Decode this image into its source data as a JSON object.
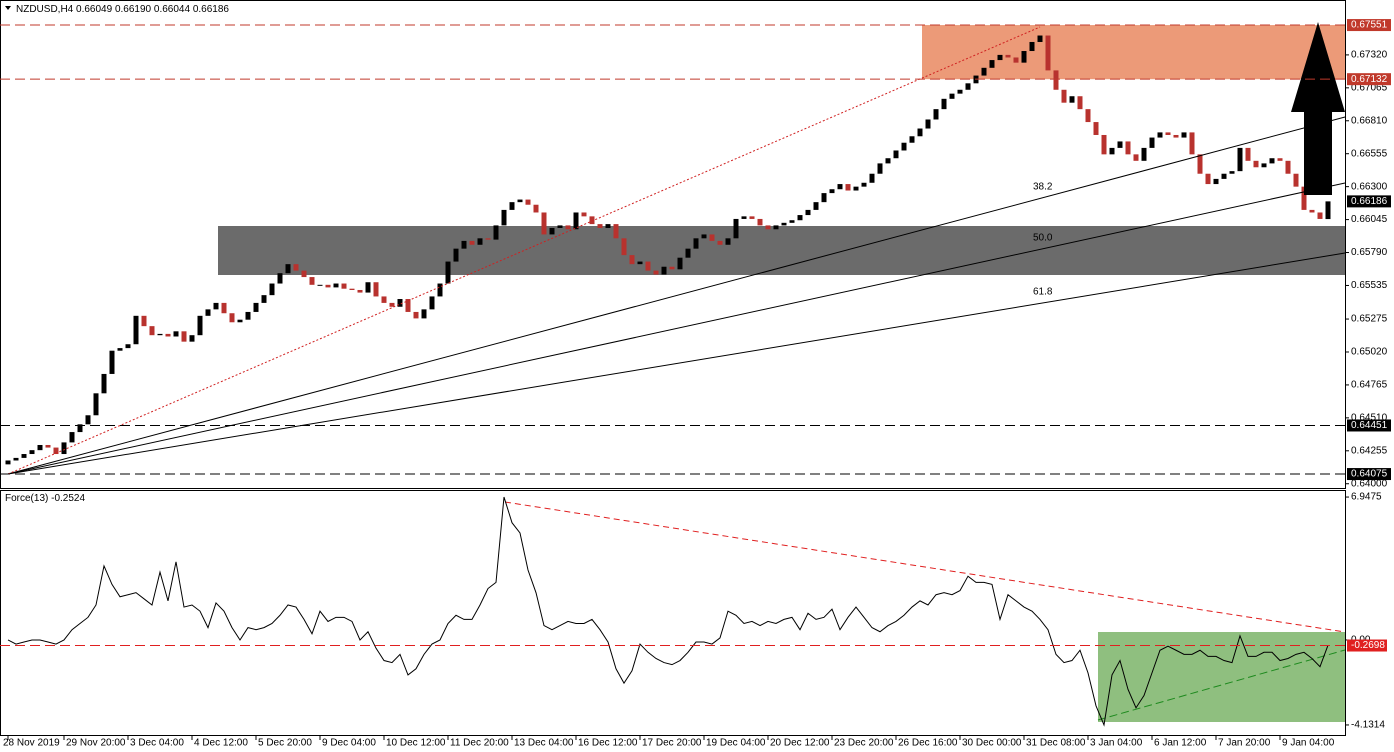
{
  "chart_data": [
    {
      "type": "candlestick",
      "title": "NZDUSD,H4",
      "last_high": {
        "value": 0.6619,
        "label": "0.66190"
      },
      "last_low": 0.66044,
      "up_color": "#000000",
      "down_color": "#b8322e",
      "open": [
        0.6415,
        0.6418,
        0.642,
        0.6423,
        0.6426,
        0.643,
        0.6428,
        0.6423,
        0.6432,
        0.644,
        0.6446,
        0.6453,
        0.647,
        0.6485,
        0.6503,
        0.6505,
        0.6508,
        0.653,
        0.6522,
        0.6515,
        0.6516,
        0.6514,
        0.6518,
        0.651,
        0.6515,
        0.653,
        0.6535,
        0.654,
        0.6532,
        0.6525,
        0.6527,
        0.6533,
        0.654,
        0.6546,
        0.6555,
        0.6563,
        0.657,
        0.6565,
        0.656,
        0.6554,
        0.6554,
        0.6552,
        0.6555,
        0.6551,
        0.655,
        0.6548,
        0.6556,
        0.6545,
        0.654,
        0.6537,
        0.6543,
        0.6533,
        0.6528,
        0.6535,
        0.6545,
        0.6555,
        0.6572,
        0.6582,
        0.6588,
        0.6585,
        0.659,
        0.6589,
        0.66,
        0.6612,
        0.6618,
        0.662,
        0.6616,
        0.661,
        0.6593,
        0.6598,
        0.66,
        0.6597,
        0.661,
        0.6607,
        0.6601,
        0.6598,
        0.6601,
        0.659,
        0.6577,
        0.657,
        0.6572,
        0.6565,
        0.6562,
        0.6568,
        0.6566,
        0.6575,
        0.6582,
        0.659,
        0.6593,
        0.6588,
        0.6585,
        0.659,
        0.6605,
        0.6607,
        0.6605,
        0.66,
        0.6597,
        0.66,
        0.6602,
        0.6604,
        0.6608,
        0.6612,
        0.6618,
        0.6625,
        0.6628,
        0.6632,
        0.6627,
        0.663,
        0.6633,
        0.664,
        0.6648,
        0.6652,
        0.6658,
        0.6664,
        0.6669,
        0.6675,
        0.6682,
        0.669,
        0.6698,
        0.6702,
        0.6705,
        0.671,
        0.6716,
        0.6722,
        0.6728,
        0.6732,
        0.673,
        0.6726,
        0.6735,
        0.6742,
        0.6747,
        0.672,
        0.6705,
        0.6695,
        0.67,
        0.669,
        0.668,
        0.667,
        0.6655,
        0.666,
        0.6665,
        0.6655,
        0.665,
        0.666,
        0.6668,
        0.6672,
        0.667,
        0.6668,
        0.6672,
        0.6655,
        0.664,
        0.6632,
        0.6636,
        0.664,
        0.6642,
        0.666,
        0.665,
        0.6645,
        0.6648,
        0.6652,
        0.665,
        0.664,
        0.663,
        0.6612,
        0.661,
        0.66049
      ],
      "close": [
        0.6418,
        0.642,
        0.6423,
        0.6426,
        0.643,
        0.6428,
        0.6423,
        0.6432,
        0.644,
        0.6446,
        0.6453,
        0.647,
        0.6485,
        0.6503,
        0.6505,
        0.6508,
        0.653,
        0.6522,
        0.6515,
        0.6516,
        0.6514,
        0.6518,
        0.651,
        0.6515,
        0.653,
        0.6535,
        0.654,
        0.6532,
        0.6525,
        0.6527,
        0.6533,
        0.654,
        0.6546,
        0.6555,
        0.6563,
        0.657,
        0.6565,
        0.656,
        0.6554,
        0.6554,
        0.6552,
        0.6555,
        0.6551,
        0.655,
        0.6548,
        0.6556,
        0.6545,
        0.654,
        0.6537,
        0.6543,
        0.6533,
        0.6528,
        0.6535,
        0.6545,
        0.6555,
        0.6572,
        0.6582,
        0.6588,
        0.6585,
        0.659,
        0.6589,
        0.66,
        0.6612,
        0.6618,
        0.662,
        0.6616,
        0.661,
        0.6593,
        0.6598,
        0.66,
        0.6597,
        0.661,
        0.6607,
        0.6601,
        0.6598,
        0.6601,
        0.659,
        0.6577,
        0.657,
        0.6572,
        0.6565,
        0.6562,
        0.6568,
        0.6566,
        0.6575,
        0.6582,
        0.659,
        0.6593,
        0.6588,
        0.6585,
        0.659,
        0.6605,
        0.6607,
        0.6605,
        0.66,
        0.6597,
        0.66,
        0.6602,
        0.6604,
        0.6608,
        0.6612,
        0.6618,
        0.6625,
        0.6628,
        0.6632,
        0.6627,
        0.663,
        0.6633,
        0.664,
        0.6648,
        0.6652,
        0.6658,
        0.6664,
        0.6669,
        0.6675,
        0.6682,
        0.669,
        0.6698,
        0.6702,
        0.6705,
        0.671,
        0.6716,
        0.6722,
        0.6728,
        0.6732,
        0.673,
        0.6726,
        0.6735,
        0.6742,
        0.6747,
        0.672,
        0.6705,
        0.6695,
        0.67,
        0.669,
        0.668,
        0.667,
        0.6655,
        0.666,
        0.6665,
        0.6655,
        0.665,
        0.666,
        0.6668,
        0.6672,
        0.667,
        0.6668,
        0.6672,
        0.6655,
        0.664,
        0.6632,
        0.6636,
        0.664,
        0.6642,
        0.666,
        0.665,
        0.6645,
        0.6648,
        0.6652,
        0.665,
        0.664,
        0.663,
        0.6612,
        0.661,
        0.6605,
        0.66186
      ],
      "ylim": [
        0.63967,
        0.67745
      ],
      "yticks": [
        {
          "value": 0.6732,
          "label": "0.67320"
        },
        {
          "value": 0.67065,
          "label": "0.67065"
        },
        {
          "value": 0.6681,
          "label": "0.66810"
        },
        {
          "value": 0.66555,
          "label": "0.66555"
        },
        {
          "value": 0.663,
          "label": "0.66300"
        },
        {
          "value": 0.66045,
          "label": "0.66045"
        },
        {
          "value": 0.6579,
          "label": "0.65790"
        },
        {
          "value": 0.65535,
          "label": "0.65535"
        },
        {
          "value": 0.65275,
          "label": "0.65275"
        },
        {
          "value": 0.6502,
          "label": "0.65020"
        },
        {
          "value": 0.64765,
          "label": "0.64765"
        },
        {
          "value": 0.6451,
          "label": "0.64510"
        },
        {
          "value": 0.64255,
          "label": "0.64255"
        },
        {
          "value": 0.64,
          "label": "0.64000"
        }
      ],
      "levels": [
        {
          "value": 0.67551,
          "color": "#c0392b"
        },
        {
          "value": 0.67132,
          "color": "#c0392b"
        },
        {
          "value": 0.64451,
          "color": "#000000"
        },
        {
          "value": 0.64075,
          "color": "#000000"
        }
      ],
      "fan_labels": [
        "38.2",
        "50.0",
        "61.8"
      ],
      "xticks": [
        {
          "value": 0,
          "label": "28 Nov 2019"
        },
        {
          "value": 7,
          "label": "29 Nov 20:00"
        },
        {
          "value": 15,
          "label": "3 Dec 04:00"
        },
        {
          "value": 23,
          "label": "4 Dec 12:00"
        },
        {
          "value": 31,
          "label": "5 Dec 20:00"
        },
        {
          "value": 39,
          "label": "9 Dec 04:00"
        },
        {
          "value": 47,
          "label": "10 Dec 12:00"
        },
        {
          "value": 55,
          "label": "11 Dec 20:00"
        },
        {
          "value": 63,
          "label": "13 Dec 04:00"
        },
        {
          "value": 71,
          "label": "16 Dec 12:00"
        },
        {
          "value": 79,
          "label": "17 Dec 20:00"
        },
        {
          "value": 87,
          "label": "19 Dec 04:00"
        },
        {
          "value": 95,
          "label": "20 Dec 12:00"
        },
        {
          "value": 103,
          "label": "23 Dec 20:00"
        },
        {
          "value": 111,
          "label": "26 Dec 16:00"
        },
        {
          "value": 119,
          "label": "30 Dec 00:00"
        },
        {
          "value": 127,
          "label": "31 Dec 08:00"
        },
        {
          "value": 135,
          "label": "3 Jan 04:00"
        },
        {
          "value": 143,
          "label": "6 Jan 12:00"
        },
        {
          "value": 151,
          "label": "7 Jan 20:00"
        },
        {
          "value": 159,
          "label": "9 Jan 04:00"
        }
      ],
      "grid": false
    },
    {
      "type": "line",
      "title": "Force(13)",
      "color": "#000000",
      "values": [
        0.0,
        -0.2,
        -0.1,
        0.0,
        0.0,
        -0.1,
        -0.2,
        0.0,
        0.5,
        0.8,
        1.1,
        1.7,
        3.6,
        2.7,
        2.1,
        2.2,
        2.3,
        2.0,
        1.7,
        3.3,
        1.9,
        3.8,
        1.6,
        1.7,
        1.4,
        0.6,
        1.8,
        1.4,
        0.6,
        0.0,
        0.6,
        0.5,
        0.6,
        0.8,
        1.2,
        1.7,
        1.6,
        1.0,
        0.3,
        1.4,
        0.9,
        1.1,
        1.1,
        0.9,
        0.0,
        0.4,
        -0.4,
        -1.0,
        -1.1,
        -0.7,
        -1.7,
        -1.4,
        -0.7,
        -0.2,
        0.0,
        0.8,
        1.2,
        1.0,
        1.0,
        1.7,
        2.5,
        2.8,
        6.9475,
        5.7,
        5.2,
        3.4,
        2.3,
        0.7,
        0.5,
        0.7,
        0.9,
        0.8,
        0.8,
        1.0,
        0.5,
        -0.1,
        -1.4,
        -2.1,
        -1.5,
        -0.2,
        -0.6,
        -0.9,
        -1.1,
        -1.2,
        -1.0,
        -0.6,
        -0.1,
        -0.1,
        -0.2,
        0.1,
        1.4,
        1.2,
        0.8,
        0.9,
        0.7,
        0.9,
        0.8,
        1.0,
        1.1,
        0.5,
        1.3,
        1.0,
        1.1,
        1.5,
        0.5,
        1.1,
        1.6,
        1.1,
        0.6,
        0.4,
        0.7,
        0.9,
        1.2,
        1.6,
        1.9,
        1.7,
        2.2,
        2.3,
        2.2,
        2.4,
        3.1,
        2.8,
        2.8,
        2.7,
        1.0,
        2.2,
        1.9,
        1.6,
        1.4,
        1.0,
        0.5,
        -0.7,
        -1.1,
        -1.0,
        -0.5,
        -1.6,
        -3.2,
        -4.1314,
        -1.7,
        -1.0,
        -2.4,
        -3.3,
        -2.7,
        -1.6,
        -0.5,
        -0.3,
        -0.5,
        -0.7,
        -0.7,
        -0.5,
        -0.8,
        -0.8,
        -1.0,
        -1.1,
        0.2,
        -0.8,
        -0.8,
        -0.6,
        -0.6,
        -1.0,
        -0.9,
        -0.7,
        -0.6,
        -0.9,
        -1.3,
        -0.2524
      ],
      "ylim": [
        -4.62,
        7.29
      ],
      "yticks": [
        6.9475,
        {
          "value": 0,
          "label": "0.00"
        },
        -4.1314
      ],
      "levels": [
        {
          "value": -0.2698,
          "color": "#e02020"
        }
      ]
    }
  ]
}
